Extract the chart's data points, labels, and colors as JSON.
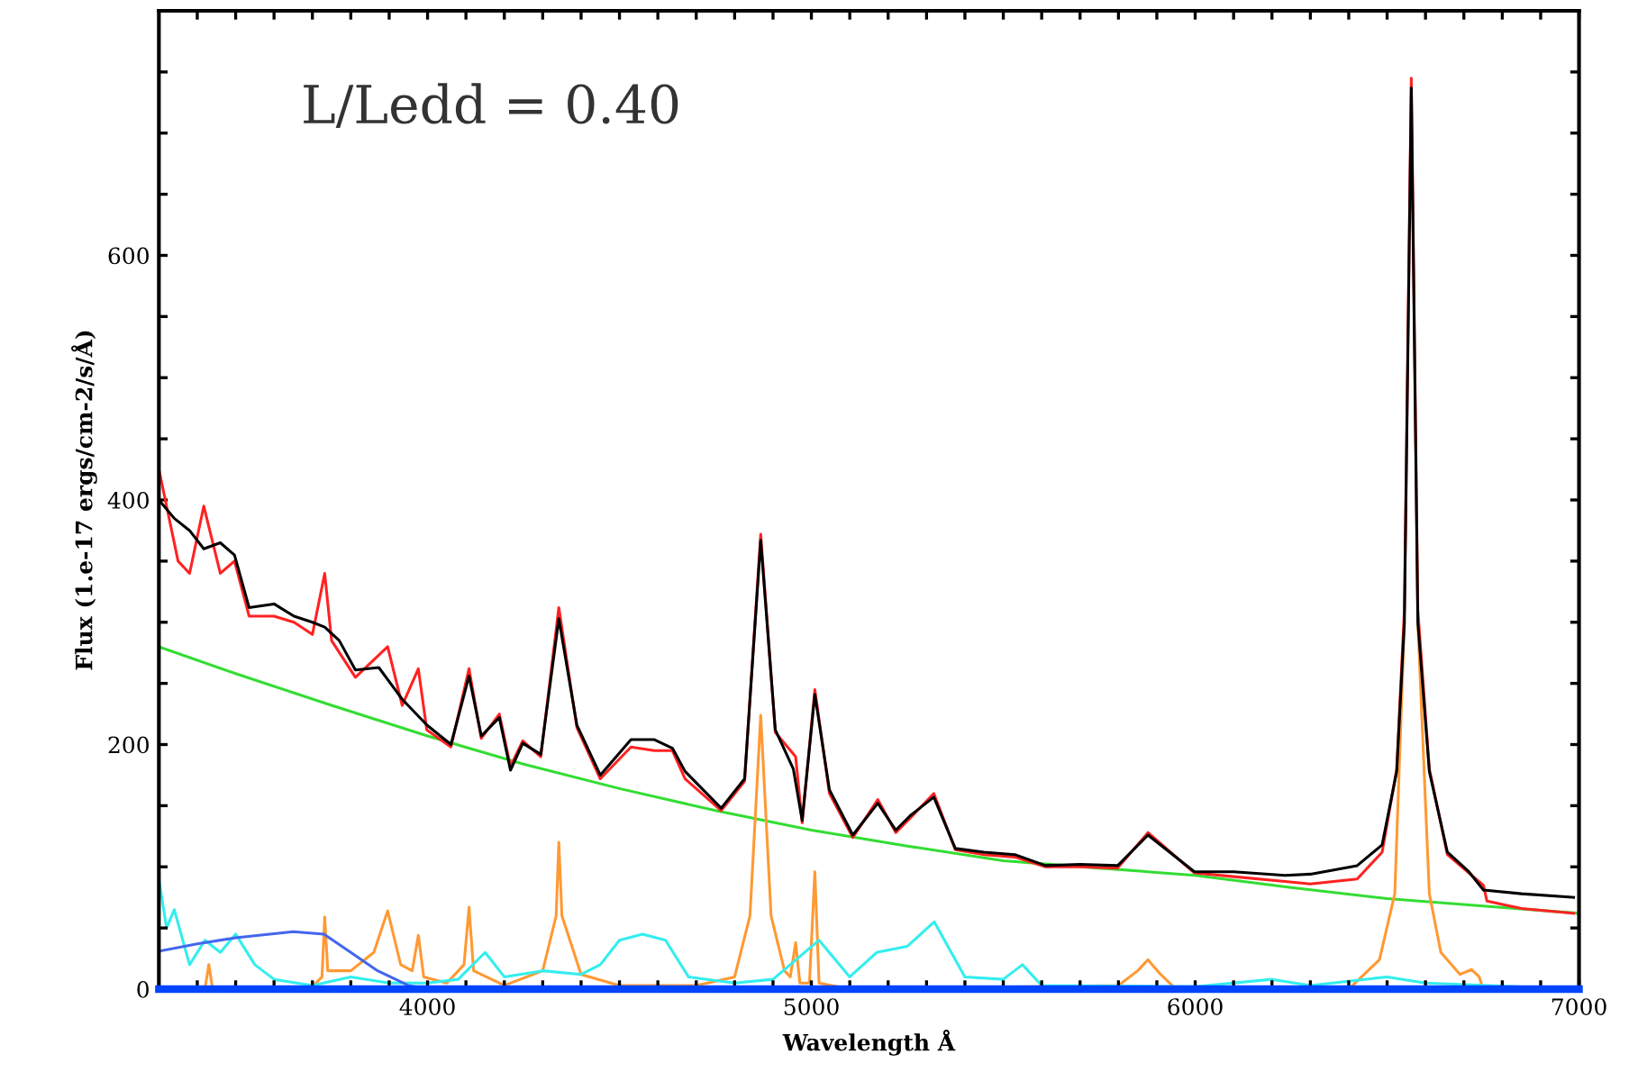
{
  "chart_data": {
    "type": "line",
    "xlabel": "Wavelength Å",
    "ylabel": "Flux (1.e-17 ergs/cm-2/s/Å)",
    "annotations": [
      "L/Ledd = 0.40"
    ],
    "xlim": [
      3300,
      7000
    ],
    "ylim": [
      0,
      800
    ],
    "xticks": [
      {
        "value": 3400,
        "label": null
      },
      {
        "value": 3500,
        "label": null
      },
      {
        "value": 3600,
        "label": null
      },
      {
        "value": 3700,
        "label": null
      },
      {
        "value": 3800,
        "label": null
      },
      {
        "value": 3900,
        "label": null
      },
      4000,
      {
        "value": 4100,
        "label": null
      },
      {
        "value": 4200,
        "label": null
      },
      {
        "value": 4300,
        "label": null
      },
      {
        "value": 4400,
        "label": null
      },
      {
        "value": 4500,
        "label": null
      },
      {
        "value": 4600,
        "label": null
      },
      {
        "value": 4700,
        "label": null
      },
      {
        "value": 4800,
        "label": null
      },
      {
        "value": 4900,
        "label": null
      },
      5000,
      {
        "value": 5100,
        "label": null
      },
      {
        "value": 5200,
        "label": null
      },
      {
        "value": 5300,
        "label": null
      },
      {
        "value": 5400,
        "label": null
      },
      {
        "value": 5500,
        "label": null
      },
      {
        "value": 5600,
        "label": null
      },
      {
        "value": 5700,
        "label": null
      },
      {
        "value": 5800,
        "label": null
      },
      {
        "value": 5900,
        "label": null
      },
      6000,
      {
        "value": 6100,
        "label": null
      },
      {
        "value": 6200,
        "label": null
      },
      {
        "value": 6300,
        "label": null
      },
      {
        "value": 6400,
        "label": null
      },
      {
        "value": 6500,
        "label": null
      },
      {
        "value": 6600,
        "label": null
      },
      {
        "value": 6700,
        "label": null
      },
      {
        "value": 6800,
        "label": null
      },
      {
        "value": 6900,
        "label": null
      },
      7000
    ],
    "yticks": [
      0,
      {
        "value": 50,
        "label": null
      },
      {
        "value": 100,
        "label": null
      },
      {
        "value": 150,
        "label": null
      },
      200,
      {
        "value": 250,
        "label": null
      },
      {
        "value": 300,
        "label": null
      },
      {
        "value": 350,
        "label": null
      },
      400,
      {
        "value": 450,
        "label": null
      },
      {
        "value": 500,
        "label": null
      },
      {
        "value": 550,
        "label": null
      },
      600,
      {
        "value": 650,
        "label": null
      },
      {
        "value": 700,
        "label": null
      },
      {
        "value": 750,
        "label": null
      }
    ],
    "grid": false,
    "legend": false,
    "series": [
      {
        "color": "#000000",
        "x": [
          3300,
          3340,
          3380,
          3417,
          3460,
          3497,
          3535,
          3600,
          3652,
          3700,
          3732,
          3770,
          3812,
          3873,
          3934,
          3998,
          4061,
          4108,
          4140,
          4187,
          4216,
          4248,
          4295,
          4342,
          4389,
          4450,
          4530,
          4591,
          4638,
          4671,
          4765,
          4826,
          4868,
          4906,
          4953,
          4976,
          5009,
          5047,
          5108,
          5173,
          5220,
          5258,
          5319,
          5375,
          5450,
          5530,
          5610,
          5700,
          5798,
          5877,
          5998,
          6100,
          6234,
          6300,
          6422,
          6487,
          6525,
          6545,
          6563,
          6580,
          6610,
          6657,
          6713,
          6751,
          6850,
          6986
        ],
        "values": [
          400,
          385,
          375,
          360,
          365,
          355,
          312,
          315,
          305,
          300,
          296,
          285,
          261,
          263,
          237,
          216,
          200,
          256,
          207,
          222,
          179,
          201,
          192,
          303,
          216,
          175,
          204,
          204,
          197,
          178,
          148,
          172,
          367,
          212,
          180,
          138,
          241,
          163,
          126,
          152,
          130,
          142,
          157,
          115,
          112,
          110,
          101,
          102,
          101,
          126,
          96,
          96,
          93,
          94,
          101,
          118,
          178,
          300,
          737,
          300,
          178,
          112,
          96,
          81,
          78,
          75
        ]
      },
      {
        "color": "#ff2222",
        "x": [
          3300,
          3350,
          3380,
          3417,
          3460,
          3497,
          3535,
          3600,
          3652,
          3700,
          3732,
          3750,
          3812,
          3896,
          3934,
          3976,
          3998,
          4061,
          4108,
          4140,
          4187,
          4216,
          4248,
          4295,
          4342,
          4389,
          4450,
          4530,
          4591,
          4638,
          4671,
          4765,
          4826,
          4868,
          4906,
          4959,
          4976,
          5009,
          5047,
          5108,
          5173,
          5220,
          5258,
          5319,
          5375,
          5450,
          5530,
          5610,
          5700,
          5798,
          5877,
          5998,
          6100,
          6234,
          6300,
          6422,
          6487,
          6525,
          6545,
          6563,
          6580,
          6610,
          6657,
          6713,
          6751,
          6760,
          6850,
          6986
        ],
        "values": [
          425,
          350,
          340,
          395,
          340,
          350,
          305,
          305,
          300,
          290,
          340,
          285,
          255,
          280,
          232,
          262,
          212,
          198,
          262,
          205,
          225,
          182,
          203,
          190,
          312,
          214,
          172,
          198,
          195,
          195,
          172,
          146,
          170,
          372,
          210,
          190,
          136,
          245,
          160,
          124,
          155,
          128,
          140,
          160,
          114,
          110,
          108,
          100,
          100,
          99,
          128,
          95,
          92,
          88,
          86,
          90,
          112,
          180,
          310,
          745,
          310,
          180,
          110,
          95,
          85,
          72,
          66,
          62
        ]
      },
      {
        "color": "#33dd33",
        "x": [
          3300,
          3500,
          3750,
          4000,
          4250,
          4500,
          4750,
          5000,
          5250,
          5500,
          5750,
          6000,
          6250,
          6500,
          6750,
          7000
        ],
        "values": [
          280,
          258,
          232,
          207,
          184,
          164,
          146,
          130,
          117,
          105,
          99,
          93,
          83,
          74,
          68,
          62
        ]
      },
      {
        "color": "#ff9933",
        "x": [
          3300,
          3420,
          3430,
          3440,
          3700,
          3725,
          3732,
          3740,
          3800,
          3860,
          3896,
          3930,
          3960,
          3976,
          3990,
          4050,
          4095,
          4108,
          4120,
          4200,
          4300,
          4335,
          4342,
          4350,
          4400,
          4500,
          4700,
          4800,
          4840,
          4868,
          4895,
          4930,
          4945,
          4959,
          4970,
          4995,
          5009,
          5020,
          5100,
          5800,
          5850,
          5877,
          5910,
          5950,
          6400,
          6480,
          6520,
          6545,
          6563,
          6580,
          6610,
          6640,
          6690,
          6720,
          6740,
          6750,
          7000
        ],
        "values": [
          0,
          0,
          20,
          0,
          2,
          10,
          59,
          15,
          15,
          30,
          64,
          20,
          15,
          44,
          10,
          5,
          20,
          67,
          15,
          3,
          15,
          60,
          120,
          60,
          12,
          3,
          3,
          10,
          60,
          224,
          60,
          15,
          10,
          38,
          5,
          5,
          96,
          5,
          0,
          3,
          15,
          24,
          12,
          0,
          0,
          24,
          78,
          300,
          null,
          300,
          78,
          30,
          12,
          16,
          10,
          0,
          0
        ]
      },
      {
        "color": "#33eeee",
        "x": [
          3300,
          3320,
          3340,
          3380,
          3420,
          3460,
          3500,
          3550,
          3600,
          3700,
          3800,
          3900,
          4000,
          4080,
          4150,
          4200,
          4300,
          4400,
          4450,
          4500,
          4560,
          4620,
          4680,
          4800,
          4900,
          5020,
          5100,
          5170,
          5250,
          5320,
          5400,
          5500,
          5550,
          5600,
          6000,
          6200,
          6300,
          6500,
          6600,
          7000
        ],
        "values": [
          90,
          50,
          65,
          20,
          40,
          30,
          45,
          20,
          8,
          3,
          10,
          5,
          5,
          8,
          30,
          10,
          15,
          12,
          20,
          40,
          45,
          40,
          10,
          5,
          8,
          40,
          10,
          30,
          35,
          55,
          10,
          8,
          20,
          3,
          2,
          8,
          3,
          10,
          5,
          0
        ]
      },
      {
        "color": "#4466ee",
        "x": [
          3300,
          3400,
          3500,
          3650,
          3730,
          3800,
          3870,
          3950,
          4000
        ],
        "values": [
          31,
          37,
          42,
          47,
          45,
          30,
          15,
          3,
          0
        ]
      },
      {
        "color": "#0044ff",
        "x": [
          3300,
          7000
        ],
        "values": [
          0,
          0
        ]
      }
    ]
  }
}
